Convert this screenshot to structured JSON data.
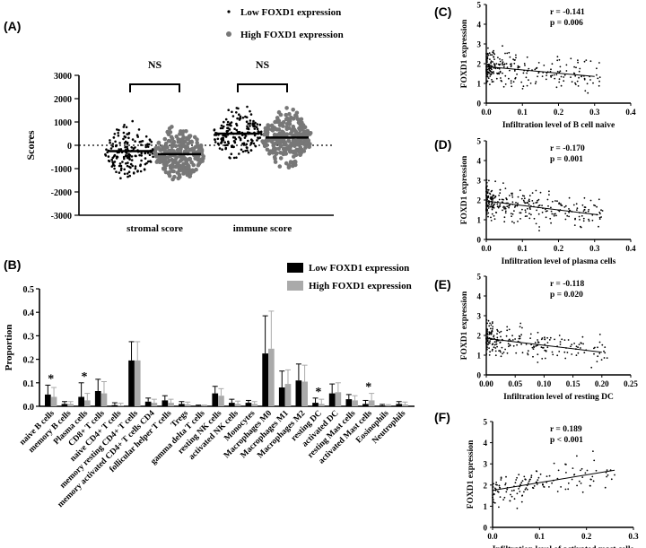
{
  "chart_data": [
    {
      "panel": "(A)",
      "type": "scatter",
      "legend": [
        "Low FOXD1 expression",
        "High FOXD1 expression"
      ],
      "ylabel": "Scores",
      "ylim": [
        -3000,
        3000
      ],
      "yticks": [
        "3000",
        "2000",
        "1000",
        "0",
        "-1000",
        "-2000",
        "-3000"
      ],
      "categories": [
        "stromal score",
        "immune score"
      ],
      "significance": [
        "NS",
        "NS"
      ],
      "series": [
        {
          "name": "Low FOXD1 expression",
          "median": [
            -250,
            500
          ],
          "range": [
            [
              -1850,
              1950
            ],
            [
              -1100,
              2550
            ]
          ]
        },
        {
          "name": "High FOXD1 expression",
          "median": [
            -380,
            330
          ],
          "range": [
            [
              -2050,
              1600
            ],
            [
              -1450,
              2350
            ]
          ]
        }
      ]
    },
    {
      "panel": "(B)",
      "type": "bar",
      "ylabel": "Proportion",
      "ylim": [
        0,
        0.5
      ],
      "yticks": [
        "0.5",
        "0.4",
        "0.3",
        "0.2",
        "0.1",
        "0.0"
      ],
      "legend": [
        "Low FOXD1 expression",
        "High FOXD1 expression"
      ],
      "significance_label": "*",
      "categories": [
        "naive B cells",
        "memory B cells",
        "Plasma cells",
        "CD8+ T cells",
        "naive CD4+ T cells",
        "memory resting CD4+ T cells",
        "memory activated CD4+ T cells CD4",
        "follicular helper T cells",
        "Tregs",
        "gamma delta T cells",
        "resting NK cells",
        "activated NK cells",
        "Monocytes",
        "Macrophages M0",
        "Macrophages M1",
        "Macrophages M2",
        "resting DC",
        "activated DC",
        "resting Mast cells",
        "activated Mast cells",
        "Eosinophils",
        "Neutrophils"
      ],
      "significant": [
        true,
        false,
        true,
        false,
        false,
        false,
        false,
        false,
        false,
        false,
        false,
        false,
        false,
        false,
        false,
        false,
        true,
        false,
        false,
        true,
        false,
        false
      ],
      "series": [
        {
          "name": "Low FOXD1 expression",
          "values": [
            0.05,
            0.01,
            0.04,
            0.065,
            0.005,
            0.195,
            0.02,
            0.025,
            0.01,
            0.002,
            0.055,
            0.015,
            0.015,
            0.225,
            0.08,
            0.11,
            0.015,
            0.055,
            0.03,
            0.01,
            0.003,
            0.01
          ],
          "errors": [
            0.04,
            0.01,
            0.06,
            0.05,
            0.01,
            0.08,
            0.015,
            0.02,
            0.01,
            0.003,
            0.03,
            0.015,
            0.01,
            0.16,
            0.07,
            0.07,
            0.02,
            0.04,
            0.02,
            0.015,
            0.005,
            0.01
          ]
        },
        {
          "name": "High FOXD1 expression",
          "values": [
            0.04,
            0.01,
            0.025,
            0.055,
            0.003,
            0.195,
            0.015,
            0.015,
            0.008,
            0.002,
            0.045,
            0.01,
            0.01,
            0.245,
            0.095,
            0.105,
            0.01,
            0.06,
            0.025,
            0.025,
            0.002,
            0.008
          ],
          "errors": [
            0.04,
            0.01,
            0.03,
            0.05,
            0.01,
            0.08,
            0.015,
            0.015,
            0.01,
            0.003,
            0.03,
            0.012,
            0.01,
            0.16,
            0.06,
            0.07,
            0.02,
            0.04,
            0.02,
            0.03,
            0.005,
            0.01
          ]
        }
      ]
    },
    {
      "panel": "(C)",
      "type": "scatter",
      "xlabel": "Infiltration level of B cell naive",
      "ylabel": "FOXD1 expression",
      "xlim": [
        0,
        0.4
      ],
      "ylim": [
        0,
        5
      ],
      "xticks": [
        "0.0",
        "0.1",
        "0.2",
        "0.3",
        "0.4"
      ],
      "yticks": [
        "0",
        "1",
        "2",
        "3",
        "4",
        "5"
      ],
      "r_label": "r = -0.141",
      "p_label": "p = 0.006",
      "fit": {
        "x0": 0,
        "y0": 1.85,
        "x1": 0.3,
        "y1": 1.35
      }
    },
    {
      "panel": "(D)",
      "type": "scatter",
      "xlabel": "Infiltration level of plasma cells",
      "ylabel": "FOXD1 expression",
      "xlim": [
        0,
        0.4
      ],
      "ylim": [
        0,
        5
      ],
      "xticks": [
        "0.0",
        "0.1",
        "0.2",
        "0.3",
        "0.4"
      ],
      "yticks": [
        "0",
        "1",
        "2",
        "3",
        "4",
        "5"
      ],
      "r_label": "r = -0.170",
      "p_label": "p = 0.001",
      "fit": {
        "x0": 0,
        "y0": 1.95,
        "x1": 0.31,
        "y1": 1.25
      }
    },
    {
      "panel": "(E)",
      "type": "scatter",
      "xlabel": "Infiltration level of resting DC",
      "ylabel": "FOXD1 expression",
      "xlim": [
        0,
        0.25
      ],
      "ylim": [
        0,
        5
      ],
      "xticks": [
        "0.00",
        "0.05",
        "0.10",
        "0.15",
        "0.20",
        "0.25"
      ],
      "yticks": [
        "0",
        "1",
        "2",
        "3",
        "4",
        "5"
      ],
      "r_label": "r = -0.118",
      "p_label": "p = 0.020",
      "fit": {
        "x0": 0,
        "y0": 1.85,
        "x1": 0.2,
        "y1": 1.15
      }
    },
    {
      "panel": "(F)",
      "type": "scatter",
      "xlabel": "Infiltration level of activated mast cells",
      "ylabel": "FOXD1 expression",
      "xlim": [
        0,
        0.3
      ],
      "ylim": [
        0,
        5
      ],
      "xticks": [
        "0.0",
        "0.1",
        "0.2",
        "0.3"
      ],
      "yticks": [
        "0",
        "1",
        "2",
        "3",
        "4",
        "5"
      ],
      "r_label": "r = 0.189",
      "p_label": "p < 0.001",
      "fit": {
        "x0": 0,
        "y0": 1.75,
        "x1": 0.26,
        "y1": 2.7
      }
    }
  ]
}
